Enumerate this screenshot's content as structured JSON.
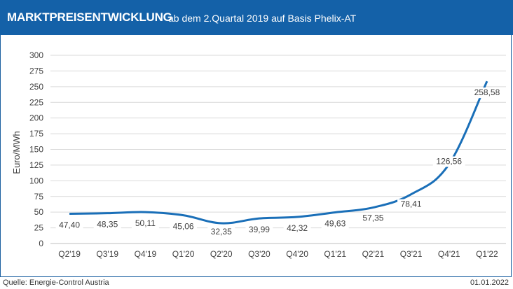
{
  "header": {
    "title": "MARKTPREISENTWICKLUNG",
    "subtitle": "ab dem 2.Quartal 2019 auf Basis Phelix-AT"
  },
  "footer": {
    "source": "Quelle: Energie-Control Austria",
    "date": "01.01.2022"
  },
  "colors": {
    "header_bg": "#1461a8",
    "line": "#1a6fb8",
    "grid": "#d9d9d9"
  },
  "chart_data": {
    "type": "line",
    "title": "MARKTPREISENTWICKLUNG ab dem 2.Quartal 2019 auf Basis Phelix-AT",
    "xlabel": "",
    "ylabel": "Euro/MWh",
    "ylim": [
      0,
      300
    ],
    "yticks": [
      "0",
      "25",
      "50",
      "75",
      "100",
      "125",
      "150",
      "175",
      "200",
      "225",
      "250",
      "275",
      "300"
    ],
    "categories": [
      "Q2'19",
      "Q3'19",
      "Q4'19",
      "Q1'20",
      "Q2'20",
      "Q3'20",
      "Q4'20",
      "Q1'21",
      "Q2'21",
      "Q3'21",
      "Q4'21",
      "Q1'22"
    ],
    "series": [
      {
        "values": [
          47.4,
          48.35,
          50.11,
          45.06,
          32.35,
          39.99,
          42.32,
          49.63,
          57.35,
          78.41,
          126.56,
          258.58
        ],
        "labels": [
          "47,40",
          "48,35",
          "50,11",
          "45,06",
          "32,35",
          "39,99",
          "42,32",
          "49,63",
          "57,35",
          "78,41",
          "126,56",
          "258,58"
        ]
      }
    ],
    "grid": true,
    "legend": "none"
  }
}
